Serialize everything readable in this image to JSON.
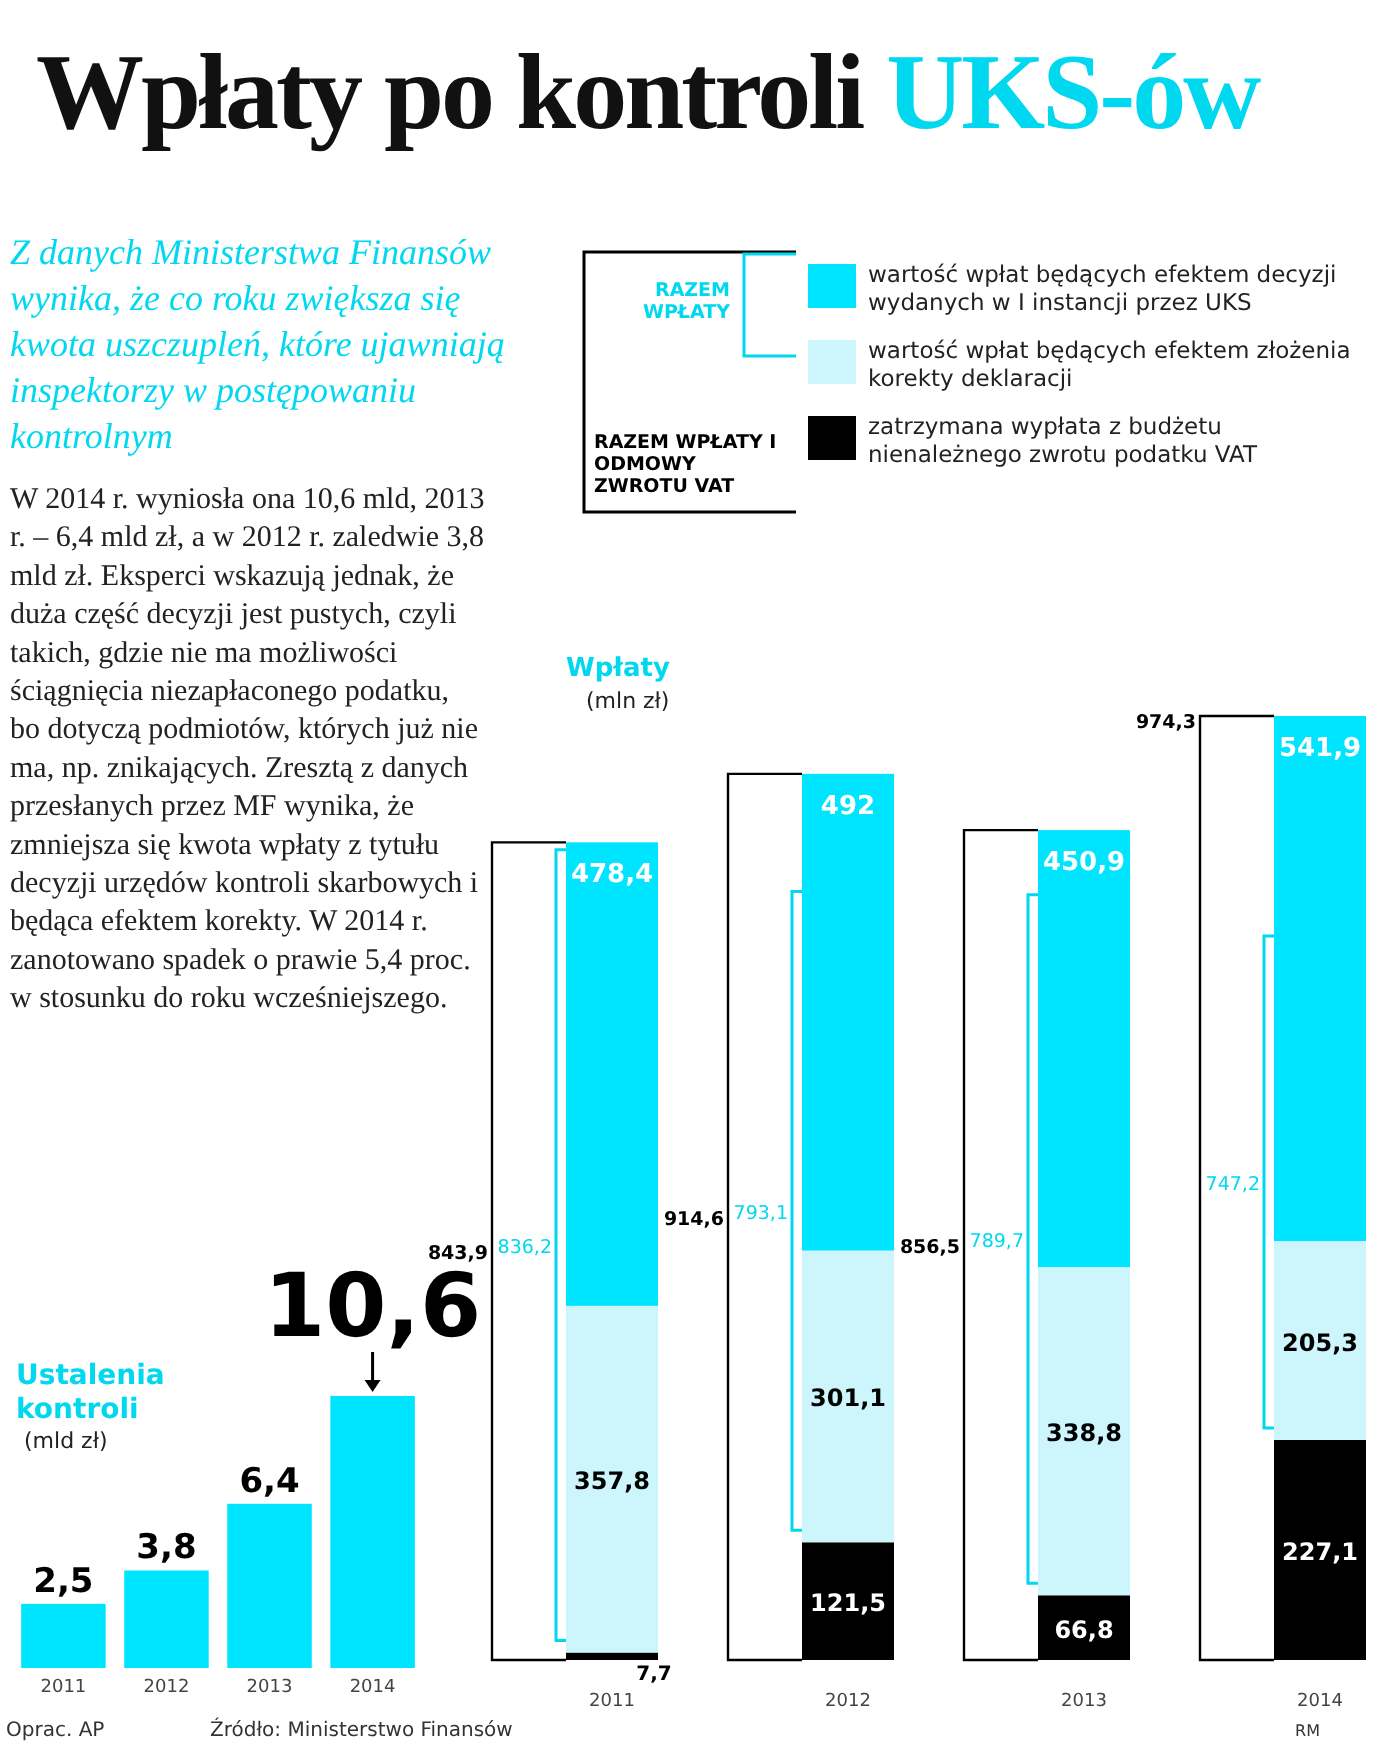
{
  "chart_data": [
    {
      "type": "other",
      "title": "Wpłaty po kontroli UKS-ów",
      "subtitle": "Z danych Ministerstwa Finansów wynika, że co roku zwiększa się kwota uszczupleń, które ujawniają inspektorzy w postępowaniu kontrolnym",
      "annotations": [
        "W 2014 r. wyniosła ona 10,6 mld, 2013 r. – 6,4 mld zł, a w 2012 r. zaledwie 3,8 mld zł. Eksperci wskazują jednak, że duża część decyzji jest pustych, czyli takich, gdzie nie ma możliwości ściągnięcia niezapłaconego podatku, bo dotyczą podmiotów, których już nie ma, np. znikających. Zresztą z danych przesłanych przez MF wynika, że zmniejsza się kwota wpłaty z tytułu decyzji urzędów kontroli skarbowych i będąca efektem korekty. W 2014 r. zanotowano spadek o prawie 5,4 proc. w stosunku do roku wcześniejszego.",
        "Oprac. AP",
        "Źródło: Ministerstwo Finansów",
        "RM"
      ]
    },
    {
      "type": "bar",
      "title": "Ustalenia kontroli",
      "subtitle": "(mld zł)",
      "categories": [
        "2011",
        "2012",
        "2013",
        "2014"
      ],
      "values": [
        2.5,
        3.8,
        6.4,
        10.6
      ],
      "value_labels": [
        "2,5",
        "3,8",
        "6,4",
        "10,6"
      ],
      "color": "#00e5ff"
    },
    {
      "type": "bar",
      "title": "Wpłaty",
      "subtitle": "(mln zł)",
      "categories": [
        "2011",
        "2012",
        "2013",
        "2014"
      ],
      "stacked": true,
      "legend": "top",
      "series": [
        {
          "name": "zatrzymana wypłata z budżetu nienależnego zwrotu podatku VAT",
          "color": "#000000",
          "values": [
            7.7,
            121.5,
            66.8,
            227.1
          ],
          "value_labels": [
            "7,7",
            "121,5",
            "66,8",
            "227,1"
          ]
        },
        {
          "name": "wartość wpłat będących efektem złożenia korekty deklaracji",
          "color": "#ccf5fc",
          "values": [
            357.8,
            301.1,
            338.8,
            205.3
          ],
          "value_labels": [
            "357,8",
            "301,1",
            "338,8",
            "205,3"
          ]
        },
        {
          "name": "wartość wpłat będących efektem decyzji wydanych w I instancji przez UKS",
          "color": "#00e5ff",
          "values": [
            478.4,
            492,
            450.9,
            541.9
          ],
          "value_labels": [
            "478,4",
            "492",
            "450,9",
            "541,9"
          ]
        }
      ],
      "annotations": [
        "RAZEM WPŁATY",
        "RAZEM WPŁATY I ODMOWY ZWROTU VAT",
        "836,2",
        "793,1",
        "789,7",
        "747,2",
        "843,9",
        "914,6",
        "856,5",
        "974,3"
      ]
    }
  ]
}
